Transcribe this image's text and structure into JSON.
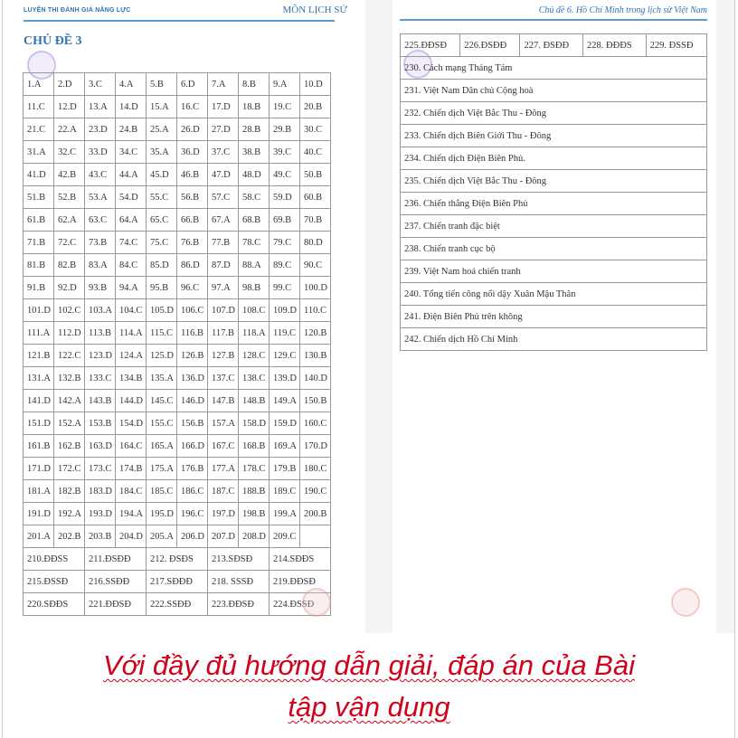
{
  "left_page": {
    "header_left": "LUYỆN THI ĐÁNH GIÁ NĂNG LỰC",
    "header_right": "MÔN LỊCH SỬ",
    "section_title": "CHỦ ĐỀ 3",
    "answers_mc": [
      "1.A",
      "2.D",
      "3.C",
      "4.A",
      "5.B",
      "6.D",
      "7.A",
      "8.B",
      "9.A",
      "10.D",
      "11.C",
      "12.D",
      "13.A",
      "14.D",
      "15.A",
      "16.C",
      "17.D",
      "18.B",
      "19.C",
      "20.B",
      "21.C",
      "22.A",
      "23.D",
      "24.B",
      "25.A",
      "26.D",
      "27.D",
      "28.B",
      "29.B",
      "30.C",
      "31.A",
      "32.C",
      "33.D",
      "34.C",
      "35.A",
      "36.D",
      "37.C",
      "38.B",
      "39.C",
      "40.C",
      "41.D",
      "42.B",
      "43.C",
      "44.A",
      "45.D",
      "46.B",
      "47.D",
      "48.D",
      "49.C",
      "50.B",
      "51.B",
      "52.B",
      "53.A",
      "54.D",
      "55.C",
      "56.B",
      "57.C",
      "58.C",
      "59.D",
      "60.B",
      "61.B",
      "62.A",
      "63.C",
      "64.A",
      "65.C",
      "66.B",
      "67.A",
      "68.B",
      "69.B",
      "70.B",
      "71.B",
      "72.C",
      "73.B",
      "74.C",
      "75.C",
      "76.B",
      "77.B",
      "78.C",
      "79.C",
      "80.D",
      "81.B",
      "82.B",
      "83.A",
      "84.C",
      "85.D",
      "86.D",
      "87.D",
      "88.A",
      "89.C",
      "90.C",
      "91.B",
      "92.D",
      "93.B",
      "94.A",
      "95.B",
      "96.C",
      "97.A",
      "98.B",
      "99.C",
      "100.D",
      "101.D",
      "102.C",
      "103.A",
      "104.C",
      "105.D",
      "106.C",
      "107.D",
      "108.C",
      "109.D",
      "110.C",
      "111.A",
      "112.D",
      "113.B",
      "114.A",
      "115.C",
      "116.B",
      "117.B",
      "118.A",
      "119.C",
      "120.B",
      "121.B",
      "122.C",
      "123.D",
      "124.A",
      "125.D",
      "126.B",
      "127.B",
      "128.C",
      "129.C",
      "130.B",
      "131.A",
      "132.B",
      "133.C",
      "134.B",
      "135.A",
      "136.D",
      "137.C",
      "138.C",
      "139.D",
      "140.D",
      "141.D",
      "142.A",
      "143.B",
      "144.D",
      "145.C",
      "146.D",
      "147.B",
      "148.B",
      "149.A",
      "150.B",
      "151.D",
      "152.A",
      "153.B",
      "154.D",
      "155.C",
      "156.B",
      "157.A",
      "158.D",
      "159.D",
      "160.C",
      "161.B",
      "162.B",
      "163.D",
      "164.C",
      "165.A",
      "166.D",
      "167.C",
      "168.B",
      "169.A",
      "170.D",
      "171.D",
      "172.C",
      "173.C",
      "174.B",
      "175.A",
      "176.B",
      "177.A",
      "178.C",
      "179.B",
      "180.C",
      "181.A",
      "182.B",
      "183.D",
      "184.C",
      "185.C",
      "186.C",
      "187.C",
      "188.B",
      "189.C",
      "190.C",
      "191.D",
      "192.A",
      "193.D",
      "194.A",
      "195.D",
      "196.C",
      "197.D",
      "198.B",
      "199.A",
      "200.B",
      "201.A",
      "202.B",
      "203.B",
      "204.D",
      "205.A",
      "206.D",
      "207.D",
      "208.D",
      "209.C",
      ""
    ],
    "answers_tf": [
      "210.ĐĐSS",
      "211.ĐSĐĐ",
      "212. ĐSĐS",
      "213.SĐSĐ",
      "214.SĐĐS",
      "215.ĐSSĐ",
      "216.SSĐĐ",
      "217.SĐĐĐ",
      "218. SSSĐ",
      "219.ĐĐSĐ",
      "220.SĐĐS",
      "221.ĐĐSĐ",
      "222.SSĐĐ",
      "223.ĐĐSĐ",
      "224.ĐSSĐ"
    ]
  },
  "right_page": {
    "header": "Chủ đề 6. Hồ Chí Minh trong lịch sử Việt Nam",
    "answers_tf": [
      "225.ĐĐSĐ",
      "226.ĐSĐĐ",
      "227. ĐSĐĐ",
      "228. ĐĐĐS",
      "229. ĐSSĐ"
    ],
    "answers_text": [
      "230. Cách mạng Tháng Tám",
      "231. Việt Nam Dân chủ Cộng hoà",
      "232. Chiến dịch Việt Bắc Thu - Đông",
      "233. Chiến dịch Biên Giới Thu - Đông",
      "234. Chiến dịch Điện Biên Phủ.",
      "235. Chiến dịch Việt Bắc Thu - Đông",
      "236. Chiến thắng Điện Biên Phủ",
      "237. Chiến tranh đặc biệt",
      "238. Chiến tranh cục bộ",
      "239. Việt Nam hoá chiến tranh",
      "240. Tổng tiến công nổi dậy Xuân Mậu Thân",
      "241. Điện Biên Phủ trên không",
      "242. Chiến dịch Hồ Chí Minh"
    ]
  },
  "caption": {
    "line1": "Với đầy đủ hướng dẫn giải, đáp án của Bài",
    "line2": "tập vận dụng"
  },
  "colors": {
    "header_blue": "#2e74b5",
    "caption_red": "#d0021b"
  }
}
